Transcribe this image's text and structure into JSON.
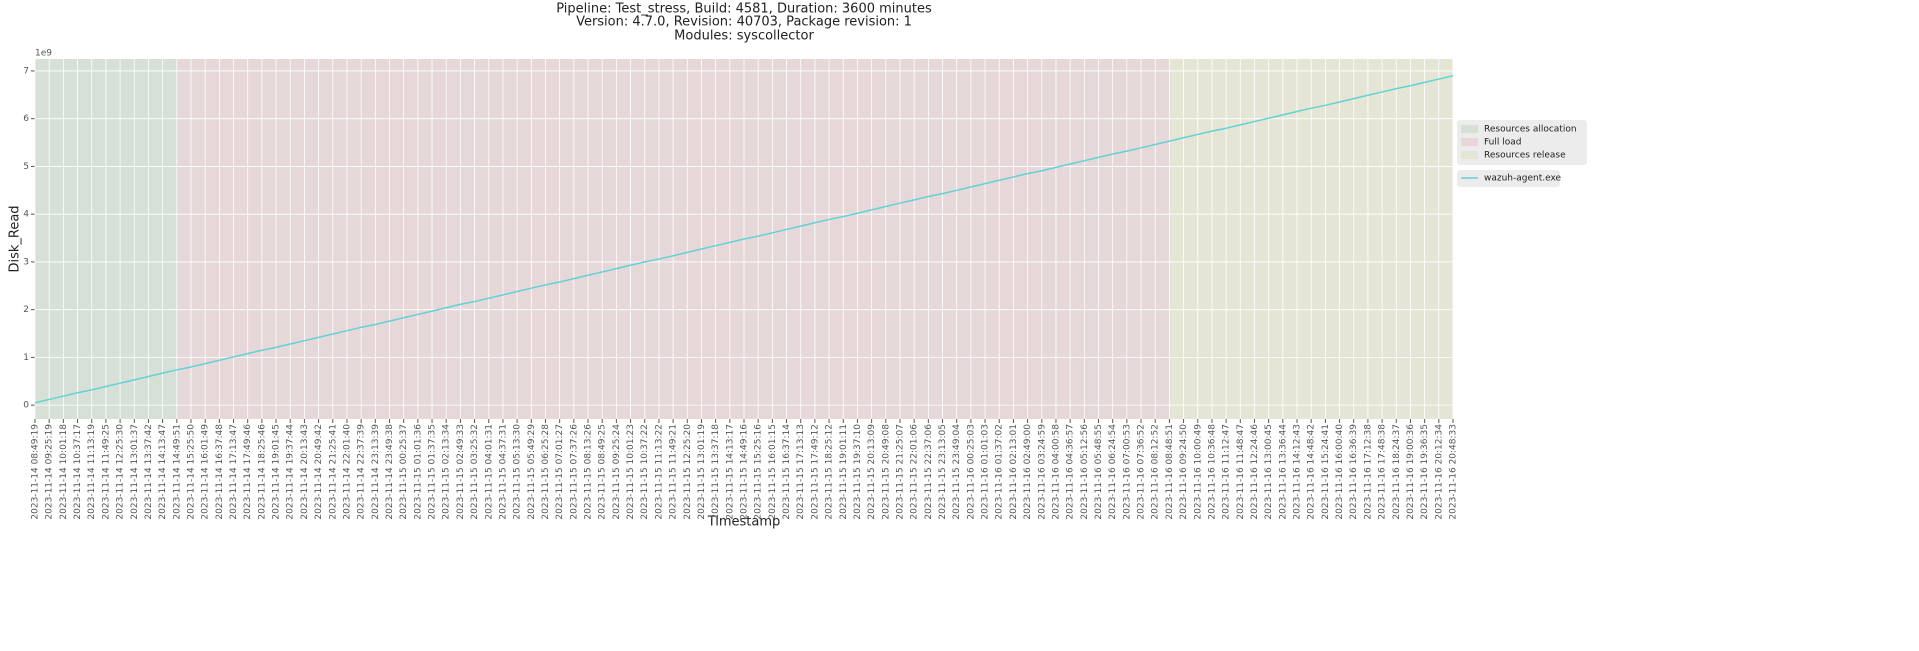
{
  "chart_data": {
    "type": "line",
    "title": [
      "Pipeline: Test_stress, Build: 4581, Duration: 3600 minutes",
      "Version: 4.7.0, Revision: 40703, Package revision: 1",
      "Modules: syscollector"
    ],
    "xlabel": "Timestamp",
    "ylabel": "Disk_Read",
    "y_offset_label": "1e9",
    "grid": true,
    "legend": "outside right",
    "ylim": [
      -0.29,
      7.25
    ],
    "yticks": [
      0,
      1,
      2,
      3,
      4,
      5,
      6,
      7
    ],
    "categories": [
      "2023-11-14 08:49:19",
      "2023-11-14 09:25:19",
      "2023-11-14 10:01:18",
      "2023-11-14 10:37:17",
      "2023-11-14 11:13:19",
      "2023-11-14 11:49:25",
      "2023-11-14 12:25:30",
      "2023-11-14 13:01:37",
      "2023-11-14 13:37:42",
      "2023-11-14 14:13:47",
      "2023-11-14 14:49:51",
      "2023-11-14 15:25:50",
      "2023-11-14 16:01:49",
      "2023-11-14 16:37:48",
      "2023-11-14 17:13:47",
      "2023-11-14 17:49:46",
      "2023-11-14 18:25:46",
      "2023-11-14 19:01:45",
      "2023-11-14 19:37:44",
      "2023-11-14 20:13:43",
      "2023-11-14 20:49:42",
      "2023-11-14 21:25:41",
      "2023-11-14 22:01:40",
      "2023-11-14 22:37:39",
      "2023-11-14 23:13:39",
      "2023-11-14 23:49:38",
      "2023-11-15 00:25:37",
      "2023-11-15 01:01:36",
      "2023-11-15 01:37:35",
      "2023-11-15 02:13:34",
      "2023-11-15 02:49:33",
      "2023-11-15 03:25:32",
      "2023-11-15 04:01:31",
      "2023-11-15 04:37:31",
      "2023-11-15 05:13:30",
      "2023-11-15 05:49:29",
      "2023-11-15 06:25:28",
      "2023-11-15 07:01:27",
      "2023-11-15 07:37:26",
      "2023-11-15 08:13:26",
      "2023-11-15 08:49:25",
      "2023-11-15 09:25:24",
      "2023-11-15 10:01:23",
      "2023-11-15 10:37:22",
      "2023-11-15 11:13:22",
      "2023-11-15 11:49:21",
      "2023-11-15 12:25:20",
      "2023-11-15 13:01:19",
      "2023-11-15 13:37:18",
      "2023-11-15 14:13:17",
      "2023-11-15 14:49:16",
      "2023-11-15 15:25:16",
      "2023-11-15 16:01:15",
      "2023-11-15 16:37:14",
      "2023-11-15 17:13:13",
      "2023-11-15 17:49:12",
      "2023-11-15 18:25:12",
      "2023-11-15 19:01:11",
      "2023-11-15 19:37:10",
      "2023-11-15 20:13:09",
      "2023-11-15 20:49:08",
      "2023-11-15 21:25:07",
      "2023-11-15 22:01:06",
      "2023-11-15 22:37:06",
      "2023-11-15 23:13:05",
      "2023-11-15 23:49:04",
      "2023-11-16 00:25:03",
      "2023-11-16 01:01:03",
      "2023-11-16 01:37:02",
      "2023-11-16 02:13:01",
      "2023-11-16 02:49:00",
      "2023-11-16 03:24:59",
      "2023-11-16 04:00:58",
      "2023-11-16 04:36:57",
      "2023-11-16 05:12:56",
      "2023-11-16 05:48:55",
      "2023-11-16 06:24:54",
      "2023-11-16 07:00:53",
      "2023-11-16 07:36:52",
      "2023-11-16 08:12:52",
      "2023-11-16 08:48:51",
      "2023-11-16 09:24:50",
      "2023-11-16 10:00:49",
      "2023-11-16 10:36:48",
      "2023-11-16 11:12:47",
      "2023-11-16 11:48:47",
      "2023-11-16 12:24:46",
      "2023-11-16 13:00:45",
      "2023-11-16 13:36:44",
      "2023-11-16 14:12:43",
      "2023-11-16 14:48:42",
      "2023-11-16 15:24:41",
      "2023-11-16 16:00:40",
      "2023-11-16 16:36:39",
      "2023-11-16 17:12:38",
      "2023-11-16 17:48:38",
      "2023-11-16 18:24:37",
      "2023-11-16 19:00:36",
      "2023-11-16 19:36:35",
      "2023-11-16 20:12:34",
      "2023-11-16 20:48:33"
    ],
    "phases": [
      {
        "name": "Resources allocation",
        "color": "#d6e0d6",
        "start": "2023-11-14 08:49:19",
        "end": "2023-11-14 14:49:51"
      },
      {
        "name": "Full load",
        "color": "#e6d8d9",
        "start": "2023-11-14 14:49:51",
        "end": "2023-11-16 08:48:51"
      },
      {
        "name": "Resources release",
        "color": "#e5e5d6",
        "start": "2023-11-16 08:48:51",
        "end": "2023-11-16 20:48:33"
      }
    ],
    "series": [
      {
        "name": "wazuh-agent.exe",
        "color": "#62d2d6",
        "values": [
          0.05,
          0.12,
          0.19,
          0.26,
          0.32,
          0.39,
          0.46,
          0.53,
          0.6,
          0.67,
          0.74,
          0.8,
          0.87,
          0.94,
          1.01,
          1.08,
          1.15,
          1.21,
          1.28,
          1.35,
          1.42,
          1.49,
          1.56,
          1.63,
          1.69,
          1.76,
          1.83,
          1.9,
          1.97,
          2.04,
          2.11,
          2.17,
          2.24,
          2.31,
          2.38,
          2.45,
          2.52,
          2.58,
          2.65,
          2.72,
          2.79,
          2.86,
          2.93,
          3.0,
          3.06,
          3.13,
          3.2,
          3.27,
          3.34,
          3.41,
          3.48,
          3.54,
          3.61,
          3.68,
          3.75,
          3.82,
          3.89,
          3.95,
          4.02,
          4.09,
          4.16,
          4.23,
          4.3,
          4.37,
          4.43,
          4.5,
          4.57,
          4.64,
          4.71,
          4.78,
          4.85,
          4.91,
          4.98,
          5.05,
          5.12,
          5.19,
          5.26,
          5.32,
          5.39,
          5.46,
          5.53,
          5.6,
          5.67,
          5.74,
          5.8,
          5.87,
          5.94,
          6.01,
          6.08,
          6.15,
          6.22,
          6.28,
          6.35,
          6.42,
          6.49,
          6.56,
          6.63,
          6.69,
          6.76,
          6.83,
          6.9
        ]
      }
    ]
  }
}
